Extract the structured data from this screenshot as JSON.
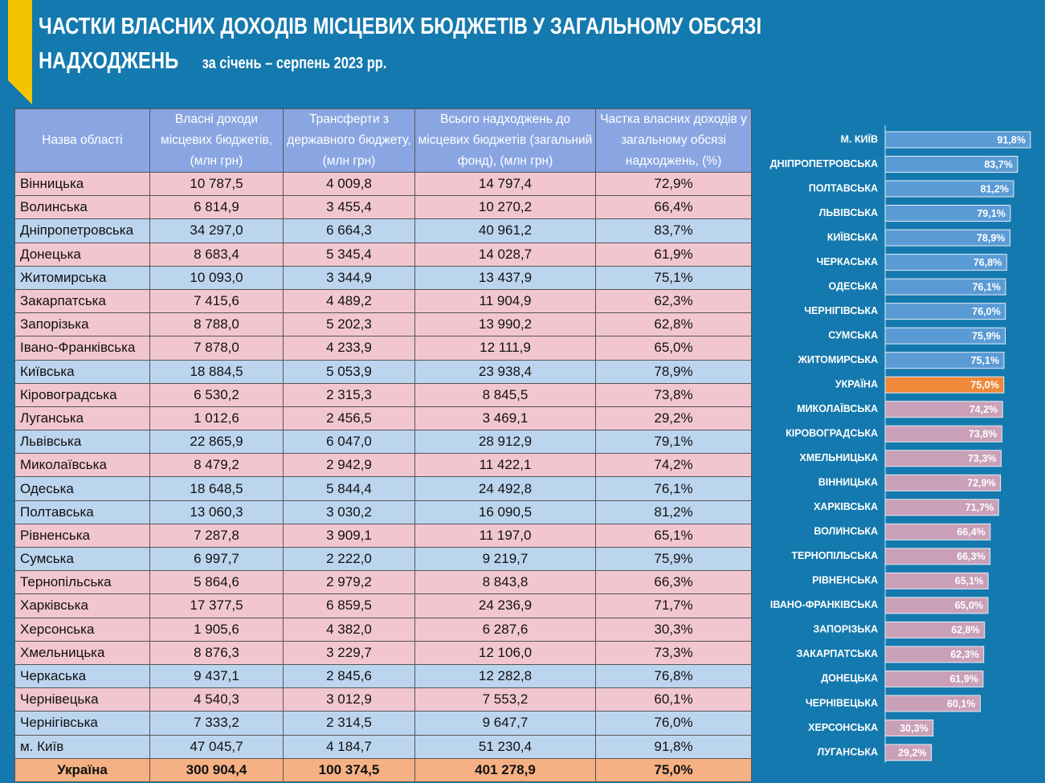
{
  "header": {
    "title": "ЧАСТКИ ВЛАСНИХ ДОХОДІВ МІСЦЕВИХ БЮДЖЕТІВ У ЗАГАЛЬНОМУ ОБСЯЗІ НАДХОДЖЕНЬ",
    "subtitle": "за січень – серпень 2023 рр."
  },
  "table": {
    "columns": [
      "Назва області",
      "Власні доходи місцевих бюджетів, (млн грн)",
      "Трансферти з державного бюджету, (млн грн)",
      "Всього надходжень до місцевих бюджетів (загальний фонд), (млн грн)",
      "Частка власних доходів у загальному обсязі надходжень, (%)"
    ],
    "rows": [
      [
        "Вінницька",
        "10 787,5",
        "4 009,8",
        "14 797,4",
        "72,9%"
      ],
      [
        "Волинська",
        "6 814,9",
        "3 455,4",
        "10 270,2",
        "66,4%"
      ],
      [
        "Дніпропетровська",
        "34 297,0",
        "6 664,3",
        "40 961,2",
        "83,7%"
      ],
      [
        "Донецька",
        "8 683,4",
        "5 345,4",
        "14 028,7",
        "61,9%"
      ],
      [
        "Житомирська",
        "10 093,0",
        "3 344,9",
        "13 437,9",
        "75,1%"
      ],
      [
        "Закарпатська",
        "7 415,6",
        "4 489,2",
        "11 904,9",
        "62,3%"
      ],
      [
        "Запорізька",
        "8 788,0",
        "5 202,3",
        "13 990,2",
        "62,8%"
      ],
      [
        "Івано-Франківська",
        "7 878,0",
        "4 233,9",
        "12 111,9",
        "65,0%"
      ],
      [
        "Київська",
        "18 884,5",
        "5 053,9",
        "23 938,4",
        "78,9%"
      ],
      [
        "Кіровоградська",
        "6 530,2",
        "2 315,3",
        "8 845,5",
        "73,8%"
      ],
      [
        "Луганська",
        "1 012,6",
        "2 456,5",
        "3 469,1",
        "29,2%"
      ],
      [
        "Львівська",
        "22 865,9",
        "6 047,0",
        "28 912,9",
        "79,1%"
      ],
      [
        "Миколаївська",
        "8 479,2",
        "2 942,9",
        "11 422,1",
        "74,2%"
      ],
      [
        "Одеська",
        "18 648,5",
        "5 844,4",
        "24 492,8",
        "76,1%"
      ],
      [
        "Полтавська",
        "13 060,3",
        "3 030,2",
        "16 090,5",
        "81,2%"
      ],
      [
        "Рівненська",
        "7 287,8",
        "3 909,1",
        "11 197,0",
        "65,1%"
      ],
      [
        "Сумська",
        "6 997,7",
        "2 222,0",
        "9 219,7",
        "75,9%"
      ],
      [
        "Тернопільська",
        "5 864,6",
        "2 979,2",
        "8 843,8",
        "66,3%"
      ],
      [
        "Харківська",
        "17 377,5",
        "6 859,5",
        "24 236,9",
        "71,7%"
      ],
      [
        "Херсонська",
        "1 905,6",
        "4 382,0",
        "6 287,6",
        "30,3%"
      ],
      [
        "Хмельницька",
        "8 876,3",
        "3 229,7",
        "12 106,0",
        "73,3%"
      ],
      [
        "Черкаська",
        "9 437,1",
        "2 845,6",
        "12 282,8",
        "76,8%"
      ],
      [
        "Чернівецька",
        "4 540,3",
        "3 012,9",
        "7 553,2",
        "60,1%"
      ],
      [
        "Чернігівська",
        "7 333,2",
        "2 314,5",
        "9 647,7",
        "76,0%"
      ],
      [
        "м. Київ",
        "47 045,7",
        "4 184,7",
        "51 230,4",
        "91,8%"
      ]
    ],
    "row_colors": [
      "#f2c6d0",
      "#f2c6d0",
      "#bcd5ef",
      "#f2c6d0",
      "#bcd5ef",
      "#f2c6d0",
      "#f2c6d0",
      "#f2c6d0",
      "#bcd5ef",
      "#f2c6d0",
      "#f2c6d0",
      "#bcd5ef",
      "#f2c6d0",
      "#bcd5ef",
      "#bcd5ef",
      "#f2c6d0",
      "#bcd5ef",
      "#f2c6d0",
      "#f2c6d0",
      "#f2c6d0",
      "#f2c6d0",
      "#bcd5ef",
      "#f2c6d0",
      "#bcd5ef",
      "#bcd5ef"
    ],
    "total": [
      "Україна",
      "300 904,4",
      "100 374,5",
      "401 278,9",
      "75,0%"
    ],
    "total_color": "#f5b183"
  },
  "chart_data": {
    "type": "bar",
    "orientation": "horizontal",
    "categories": [
      "М. КИЇВ",
      "ДНІПРОПЕТРОВСЬКА",
      "ПОЛТАВСЬКА",
      "ЛЬВІВСЬКА",
      "КИЇВСЬКА",
      "ЧЕРКАСЬКА",
      "ОДЕСЬКА",
      "ЧЕРНІГІВСЬКА",
      "СУМСЬКА",
      "ЖИТОМИРСЬКА",
      "УКРАЇНА",
      "МИКОЛАЇВСЬКА",
      "КІРОВОГРАДСЬКА",
      "ХМЕЛЬНИЦЬКА",
      "ВІННИЦЬКА",
      "ХАРКІВСЬКА",
      "ВОЛИНСЬКА",
      "ТЕРНОПІЛЬСЬКА",
      "РІВНЕНСЬКА",
      "ІВАНО-ФРАНКІВСЬКА",
      "ЗАПОРІЗЬКА",
      "ЗАКАРПАТСЬКА",
      "ДОНЕЦЬКА",
      "ЧЕРНІВЕЦЬКА",
      "ХЕРСОНСЬКА",
      "ЛУГАНСЬКА"
    ],
    "values": [
      91.8,
      83.7,
      81.2,
      79.1,
      78.9,
      76.8,
      76.1,
      76.0,
      75.9,
      75.1,
      75.0,
      74.2,
      73.8,
      73.3,
      72.9,
      71.7,
      66.4,
      66.3,
      65.1,
      65.0,
      62.8,
      62.3,
      61.9,
      60.1,
      30.3,
      29.2
    ],
    "value_labels": [
      "91,8%",
      "83,7%",
      "81,2%",
      "79,1%",
      "78,9%",
      "76,8%",
      "76,1%",
      "76,0%",
      "75,9%",
      "75,1%",
      "75,0%",
      "74,2%",
      "73,8%",
      "73,3%",
      "72,9%",
      "71,7%",
      "66,4%",
      "66,3%",
      "65,1%",
      "65,0%",
      "62,8%",
      "62,3%",
      "61,9%",
      "60,1%",
      "30,3%",
      "29,2%"
    ],
    "colors": [
      "#5b9bd5",
      "#5b9bd5",
      "#5b9bd5",
      "#5b9bd5",
      "#5b9bd5",
      "#5b9bd5",
      "#5b9bd5",
      "#5b9bd5",
      "#5b9bd5",
      "#5b9bd5",
      "#f0883a",
      "#c9a0b8",
      "#c9a0b8",
      "#c9a0b8",
      "#c9a0b8",
      "#c9a0b8",
      "#c9a0b8",
      "#c9a0b8",
      "#c9a0b8",
      "#c9a0b8",
      "#c9a0b8",
      "#c9a0b8",
      "#c9a0b8",
      "#c9a0b8",
      "#c9a0b8",
      "#c9a0b8"
    ]
  }
}
